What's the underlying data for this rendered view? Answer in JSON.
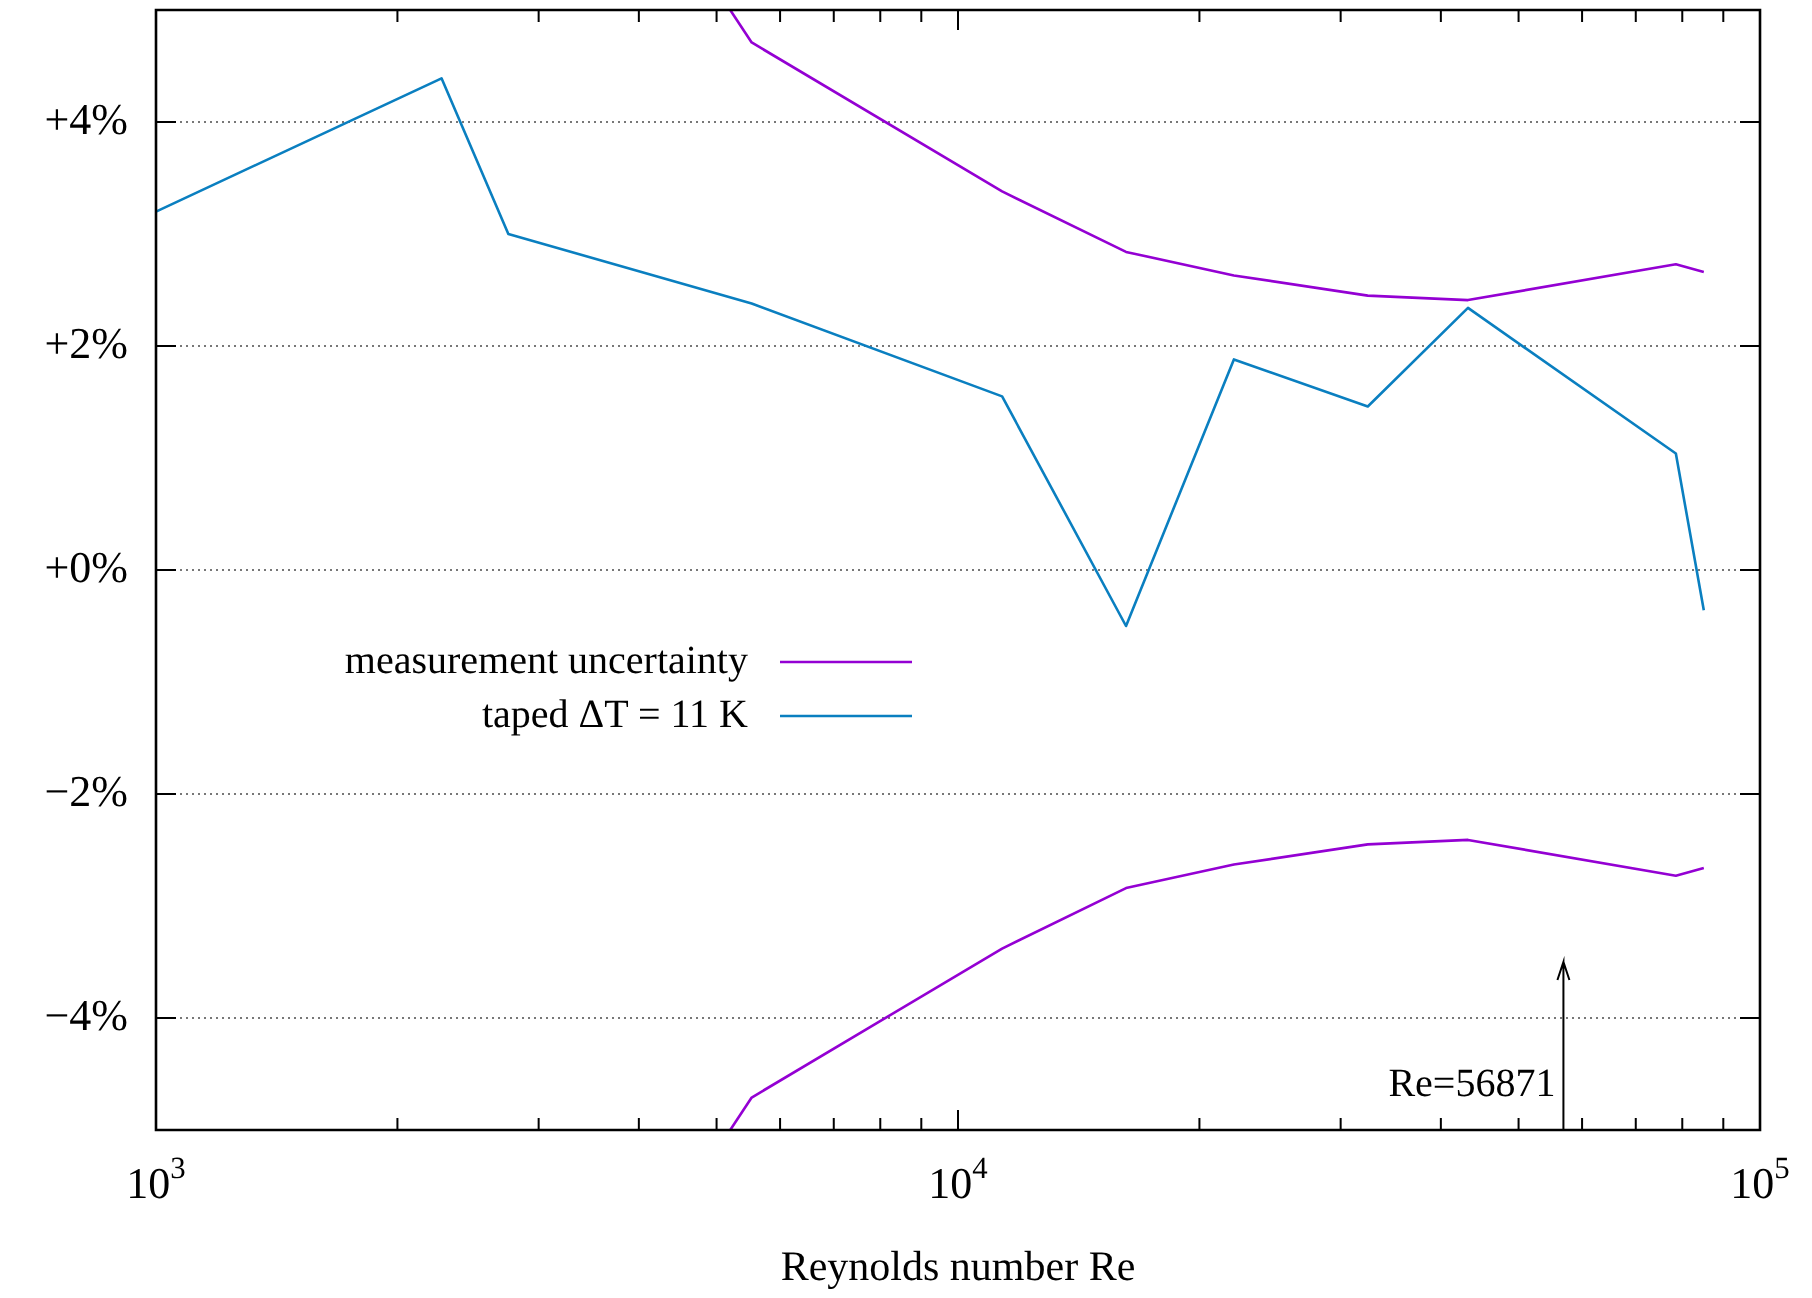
{
  "chart_data": {
    "type": "line",
    "xlabel": "Reynolds number Re",
    "log": "x",
    "grid": "y",
    "legend": "center left",
    "marker": "none",
    "line_style": "solid",
    "xlim": [
      1000,
      100000
    ],
    "ylim": [
      -5,
      5
    ],
    "xticks": [
      {
        "value": 1000,
        "label": "10$^{3}$"
      },
      {
        "value": 2000,
        "label": null
      },
      {
        "value": 3000,
        "label": null
      },
      {
        "value": 4000,
        "label": null
      },
      {
        "value": 5000,
        "label": null
      },
      {
        "value": 6000,
        "label": null
      },
      {
        "value": 7000,
        "label": null
      },
      {
        "value": 8000,
        "label": null
      },
      {
        "value": 9000,
        "label": null
      },
      {
        "value": 10000,
        "label": "10$^{4}$"
      },
      {
        "value": 20000,
        "label": null
      },
      {
        "value": 30000,
        "label": null
      },
      {
        "value": 40000,
        "label": null
      },
      {
        "value": 50000,
        "label": null
      },
      {
        "value": 60000,
        "label": null
      },
      {
        "value": 70000,
        "label": null
      },
      {
        "value": 80000,
        "label": null
      },
      {
        "value": 90000,
        "label": null
      },
      {
        "value": 100000,
        "label": "10$^{5}$"
      }
    ],
    "yticks": [
      {
        "value": -4,
        "label": "−4%"
      },
      {
        "value": -2,
        "label": "−2%"
      },
      {
        "value": 0,
        "label": "+0%"
      },
      {
        "value": 2,
        "label": "+2%"
      },
      {
        "value": 4,
        "label": "+4%"
      }
    ],
    "series": [
      {
        "name": "measurement uncertainty",
        "color": "#9400d3",
        "x": [
          5200,
          5530,
          11350,
          16200,
          22080,
          32430,
          43240,
          78540,
          85100
        ],
        "values": [
          5.0,
          4.71,
          3.38,
          2.84,
          2.63,
          2.45,
          2.41,
          2.73,
          2.66
        ]
      },
      {
        "color": "#9400d3",
        "x": [
          5200,
          5530,
          11350,
          16200,
          22080,
          32430,
          43240,
          78540,
          85100
        ],
        "values": [
          -5.0,
          -4.71,
          -3.38,
          -2.84,
          -2.63,
          -2.45,
          -2.41,
          -2.73,
          -2.66
        ]
      },
      {
        "name": "taped ΔT = 11 K",
        "color": "#0a7fc0",
        "x": [
          1000,
          2270,
          2750,
          5530,
          11350,
          16200,
          22080,
          32430,
          43240,
          78540,
          85100
        ],
        "values": [
          3.2,
          4.39,
          3.0,
          2.38,
          1.55,
          -0.5,
          1.88,
          1.46,
          2.34,
          1.04,
          -0.36
        ]
      }
    ],
    "ref_lines": [
      {
        "axis": "x",
        "value": 56871,
        "color": "#000000"
      }
    ],
    "annotations": [
      "Re=56871"
    ]
  }
}
